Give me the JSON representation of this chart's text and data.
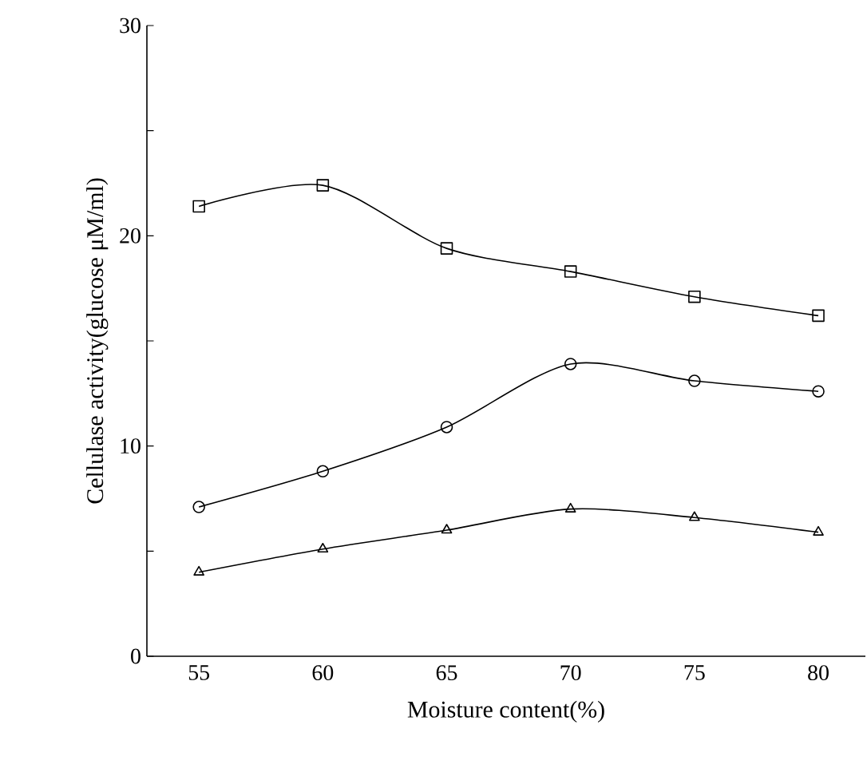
{
  "chart_data": {
    "type": "line",
    "xlabel": "Moisture content(%)",
    "ylabel": "Cellulase activity(glucose  μM/ml)",
    "x": [
      55,
      60,
      65,
      70,
      75,
      80
    ],
    "xlim": [
      52.9,
      81.9
    ],
    "xticks": [
      55,
      60,
      65,
      70,
      75,
      80
    ],
    "ylim": [
      0,
      30
    ],
    "yticks": [
      0,
      {
        "value": 5,
        "label": null
      },
      10,
      {
        "value": 15,
        "label": null
      },
      20,
      {
        "value": 25,
        "label": null
      },
      30
    ],
    "grid": false,
    "line_style": "solid",
    "series": [
      {
        "color": "#000000",
        "marker": "square",
        "values": [
          21.4,
          22.4,
          19.4,
          18.3,
          17.1,
          16.2
        ]
      },
      {
        "color": "#000000",
        "marker": "circle",
        "values": [
          7.1,
          8.8,
          10.9,
          13.9,
          13.1,
          12.6
        ]
      },
      {
        "color": "#000000",
        "marker": "triangle",
        "values": [
          4.0,
          5.1,
          6.0,
          7.0,
          6.6,
          5.9
        ]
      }
    ]
  }
}
